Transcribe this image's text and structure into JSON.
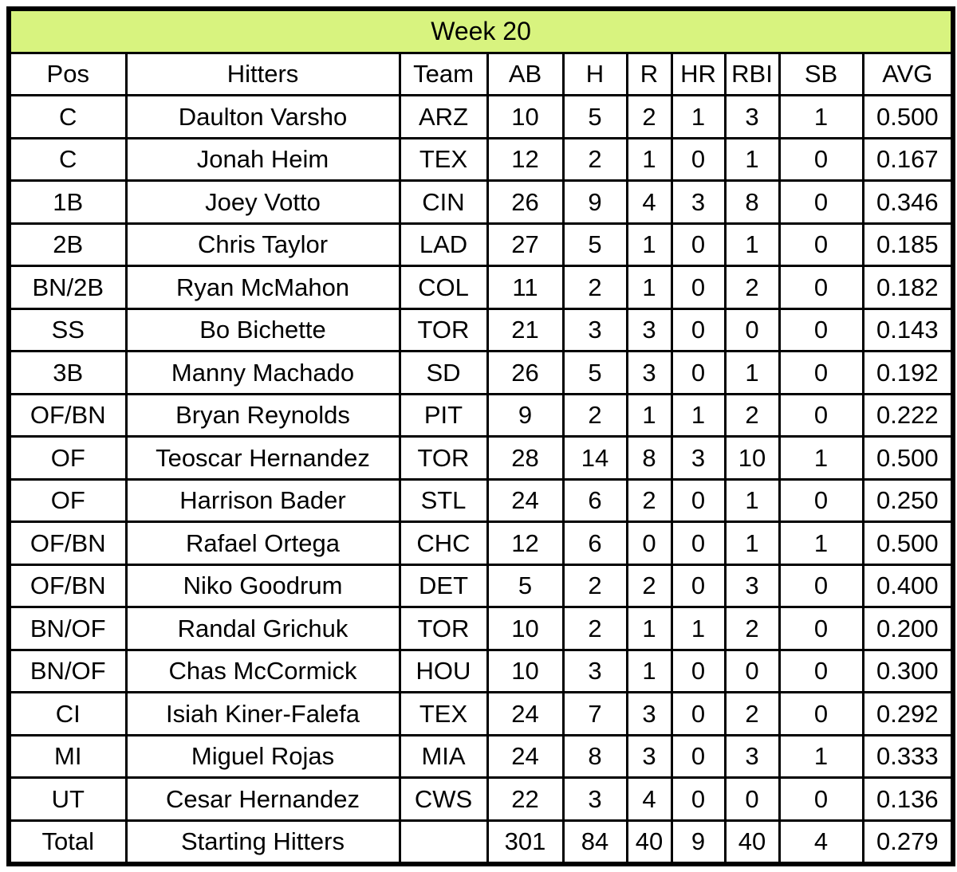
{
  "title": "Week 20",
  "colors": {
    "title_bg": "#d8f37f",
    "border": "#000000",
    "cell_bg": "#ffffff",
    "text": "#000000"
  },
  "columns": [
    "Pos",
    "Hitters",
    "Team",
    "AB",
    "H",
    "R",
    "HR",
    "RBI",
    "SB",
    "AVG"
  ],
  "rows": [
    {
      "pos": "C",
      "hitters": "Daulton Varsho",
      "team": "ARZ",
      "ab": "10",
      "h": "5",
      "r": "2",
      "hr": "1",
      "rbi": "3",
      "sb": "1",
      "avg": "0.500"
    },
    {
      "pos": "C",
      "hitters": "Jonah Heim",
      "team": "TEX",
      "ab": "12",
      "h": "2",
      "r": "1",
      "hr": "0",
      "rbi": "1",
      "sb": "0",
      "avg": "0.167"
    },
    {
      "pos": "1B",
      "hitters": "Joey Votto",
      "team": "CIN",
      "ab": "26",
      "h": "9",
      "r": "4",
      "hr": "3",
      "rbi": "8",
      "sb": "0",
      "avg": "0.346"
    },
    {
      "pos": "2B",
      "hitters": "Chris Taylor",
      "team": "LAD",
      "ab": "27",
      "h": "5",
      "r": "1",
      "hr": "0",
      "rbi": "1",
      "sb": "0",
      "avg": "0.185"
    },
    {
      "pos": "BN/2B",
      "hitters": "Ryan McMahon",
      "team": "COL",
      "ab": "11",
      "h": "2",
      "r": "1",
      "hr": "0",
      "rbi": "2",
      "sb": "0",
      "avg": "0.182"
    },
    {
      "pos": "SS",
      "hitters": "Bo Bichette",
      "team": "TOR",
      "ab": "21",
      "h": "3",
      "r": "3",
      "hr": "0",
      "rbi": "0",
      "sb": "0",
      "avg": "0.143"
    },
    {
      "pos": "3B",
      "hitters": "Manny Machado",
      "team": "SD",
      "ab": "26",
      "h": "5",
      "r": "3",
      "hr": "0",
      "rbi": "1",
      "sb": "0",
      "avg": "0.192"
    },
    {
      "pos": "OF/BN",
      "hitters": "Bryan Reynolds",
      "team": "PIT",
      "ab": "9",
      "h": "2",
      "r": "1",
      "hr": "1",
      "rbi": "2",
      "sb": "0",
      "avg": "0.222"
    },
    {
      "pos": "OF",
      "hitters": "Teoscar Hernandez",
      "team": "TOR",
      "ab": "28",
      "h": "14",
      "r": "8",
      "hr": "3",
      "rbi": "10",
      "sb": "1",
      "avg": "0.500"
    },
    {
      "pos": "OF",
      "hitters": "Harrison Bader",
      "team": "STL",
      "ab": "24",
      "h": "6",
      "r": "2",
      "hr": "0",
      "rbi": "1",
      "sb": "0",
      "avg": "0.250"
    },
    {
      "pos": "OF/BN",
      "hitters": "Rafael Ortega",
      "team": "CHC",
      "ab": "12",
      "h": "6",
      "r": "0",
      "hr": "0",
      "rbi": "1",
      "sb": "1",
      "avg": "0.500"
    },
    {
      "pos": "OF/BN",
      "hitters": "Niko Goodrum",
      "team": "DET",
      "ab": "5",
      "h": "2",
      "r": "2",
      "hr": "0",
      "rbi": "3",
      "sb": "0",
      "avg": "0.400"
    },
    {
      "pos": "BN/OF",
      "hitters": "Randal Grichuk",
      "team": "TOR",
      "ab": "10",
      "h": "2",
      "r": "1",
      "hr": "1",
      "rbi": "2",
      "sb": "0",
      "avg": "0.200"
    },
    {
      "pos": "BN/OF",
      "hitters": "Chas McCormick",
      "team": "HOU",
      "ab": "10",
      "h": "3",
      "r": "1",
      "hr": "0",
      "rbi": "0",
      "sb": "0",
      "avg": "0.300"
    },
    {
      "pos": "CI",
      "hitters": "Isiah Kiner-Falefa",
      "team": "TEX",
      "ab": "24",
      "h": "7",
      "r": "3",
      "hr": "0",
      "rbi": "2",
      "sb": "0",
      "avg": "0.292"
    },
    {
      "pos": "MI",
      "hitters": "Miguel Rojas",
      "team": "MIA",
      "ab": "24",
      "h": "8",
      "r": "3",
      "hr": "0",
      "rbi": "3",
      "sb": "1",
      "avg": "0.333"
    },
    {
      "pos": "UT",
      "hitters": "Cesar Hernandez",
      "team": "CWS",
      "ab": "22",
      "h": "3",
      "r": "4",
      "hr": "0",
      "rbi": "0",
      "sb": "0",
      "avg": "0.136"
    }
  ],
  "total": {
    "pos": "Total",
    "hitters": "Starting Hitters",
    "team": "",
    "ab": "301",
    "h": "84",
    "r": "40",
    "hr": "9",
    "rbi": "40",
    "sb": "4",
    "avg": "0.279"
  }
}
